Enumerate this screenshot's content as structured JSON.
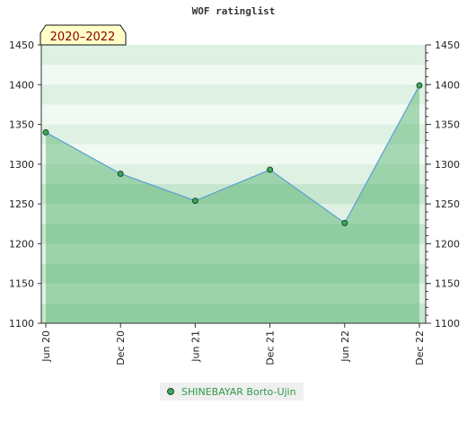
{
  "chart_data": {
    "type": "area",
    "title": "WOF ratinglist",
    "period_label": "2020–2022",
    "x": [
      "Jun 20",
      "Dec 20",
      "Jun 21",
      "Dec 21",
      "Jun 22",
      "Dec 22"
    ],
    "series": [
      {
        "name": "SHINEBAYAR Borto-Ujin",
        "values": [
          1340,
          1288,
          1254,
          1293,
          1226,
          1399
        ]
      }
    ],
    "ylim": [
      1100,
      1450
    ],
    "yticks": [
      1100,
      1150,
      1200,
      1250,
      1300,
      1350,
      1400,
      1450
    ],
    "xlabel": "",
    "ylabel": "",
    "grid": "horizontal bands",
    "legend_position": "bottom",
    "colors": {
      "line": "#5a9fd4",
      "area": "#4caf66",
      "marker": "#3aa85a",
      "marker_border": "#1f4a2a",
      "band_dark": "#c6e6cf",
      "band_light": "#def1e3",
      "band_white": "#f1f9f3",
      "label_box": "#ffffc8"
    }
  }
}
